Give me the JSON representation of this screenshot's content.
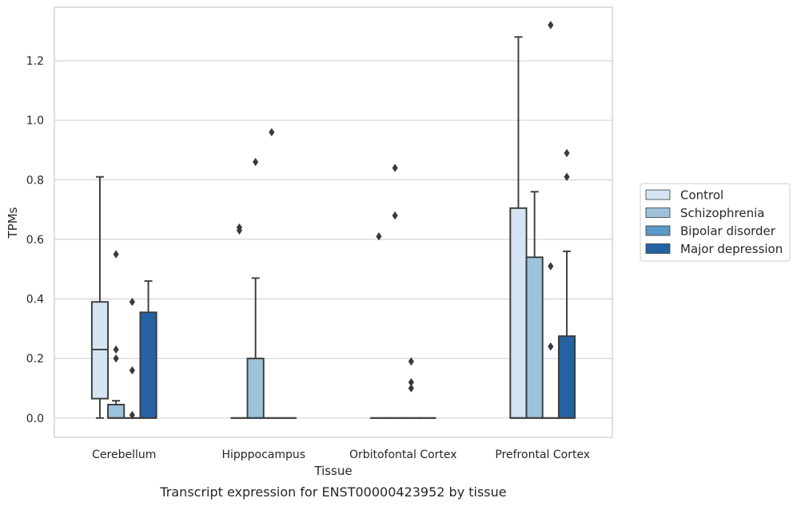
{
  "chart_data": {
    "type": "box",
    "title": "",
    "caption": "Transcript expression for ENST00000423952 by tissue",
    "xlabel": "Tissue",
    "ylabel": "TPMs",
    "ylim": [
      -0.065,
      1.38
    ],
    "yticks": [
      "0.0",
      "0.2",
      "0.4",
      "0.6",
      "0.8",
      "1.0",
      "1.2"
    ],
    "grid": "horizontal",
    "legend_position": "right",
    "categories": [
      "Cerebellum",
      "Hipppocampus",
      "Orbitofontal Cortex",
      "Prefrontal Cortex"
    ],
    "series": [
      {
        "name": "Control",
        "color": "#d4e4f2",
        "boxes": [
          {
            "q1": 0.065,
            "median": 0.23,
            "q3": 0.39,
            "whisker_low": 0.0,
            "whisker_high": 0.81,
            "outliers": []
          },
          {
            "q1": 0.0,
            "median": 0.0,
            "q3": 0.0,
            "whisker_low": 0.0,
            "whisker_high": 0.0,
            "outliers": [
              0.63,
              0.64
            ]
          },
          {
            "q1": 0.0,
            "median": 0.0,
            "q3": 0.0,
            "whisker_low": 0.0,
            "whisker_high": 0.0,
            "outliers": [
              0.61
            ]
          },
          {
            "q1": 0.0,
            "median": 0.0,
            "q3": 0.705,
            "whisker_low": 0.0,
            "whisker_high": 1.28,
            "outliers": []
          }
        ]
      },
      {
        "name": "Schizophrenia",
        "color": "#9dc3da",
        "boxes": [
          {
            "q1": 0.0,
            "median": 0.0,
            "q3": 0.045,
            "whisker_low": 0.0,
            "whisker_high": 0.058,
            "outliers": [
              0.2,
              0.23,
              0.55
            ]
          },
          {
            "q1": 0.0,
            "median": 0.0,
            "q3": 0.2,
            "whisker_low": 0.0,
            "whisker_high": 0.47,
            "outliers": [
              0.86
            ]
          },
          {
            "q1": 0.0,
            "median": 0.0,
            "q3": 0.0,
            "whisker_low": 0.0,
            "whisker_high": 0.0,
            "outliers": [
              0.68,
              0.84
            ]
          },
          {
            "q1": 0.0,
            "median": 0.0,
            "q3": 0.54,
            "whisker_low": 0.0,
            "whisker_high": 0.76,
            "outliers": []
          }
        ]
      },
      {
        "name": "Bipolar disorder",
        "color": "#5a9bc7",
        "boxes": [
          {
            "q1": 0.0,
            "median": 0.0,
            "q3": 0.0,
            "whisker_low": 0.0,
            "whisker_high": 0.0,
            "outliers": [
              0.01,
              0.16,
              0.39
            ]
          },
          {
            "q1": 0.0,
            "median": 0.0,
            "q3": 0.0,
            "whisker_low": 0.0,
            "whisker_high": 0.0,
            "outliers": [
              0.96
            ]
          },
          {
            "q1": 0.0,
            "median": 0.0,
            "q3": 0.0,
            "whisker_low": 0.0,
            "whisker_high": 0.0,
            "outliers": [
              0.1,
              0.12,
              0.19
            ]
          },
          {
            "q1": 0.0,
            "median": 0.0,
            "q3": 0.0,
            "whisker_low": 0.0,
            "whisker_high": 0.0,
            "outliers": [
              0.24,
              0.51,
              1.32
            ]
          }
        ]
      },
      {
        "name": "Major depression",
        "color": "#2462a3",
        "boxes": [
          {
            "q1": 0.0,
            "median": 0.0,
            "q3": 0.355,
            "whisker_low": 0.0,
            "whisker_high": 0.46,
            "outliers": []
          },
          {
            "q1": 0.0,
            "median": 0.0,
            "q3": 0.0,
            "whisker_low": 0.0,
            "whisker_high": 0.0,
            "outliers": []
          },
          {
            "q1": 0.0,
            "median": 0.0,
            "q3": 0.0,
            "whisker_low": 0.0,
            "whisker_high": 0.0,
            "outliers": []
          },
          {
            "q1": 0.0,
            "median": 0.0,
            "q3": 0.275,
            "whisker_low": 0.0,
            "whisker_high": 0.56,
            "outliers": [
              0.81,
              0.89
            ]
          }
        ]
      }
    ]
  },
  "colors": {
    "frame": "#cccccc",
    "grid": "#d0d0d0",
    "box_edge": "#3a3a3a",
    "text": "#262626"
  }
}
